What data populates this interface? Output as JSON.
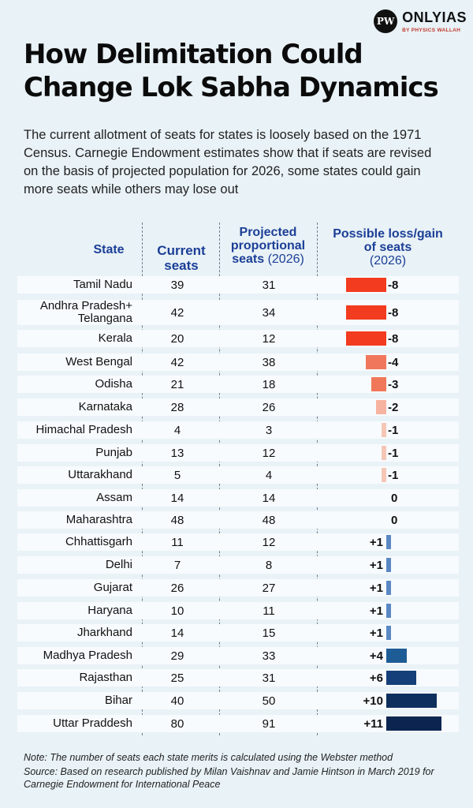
{
  "logo": {
    "mark": "PW",
    "name": "ONLYIAS",
    "sub": "BY PHYSICS WALLAH"
  },
  "title_line1": "How Delimitation Could",
  "title_line2": "Change Lok Sabha Dynamics",
  "subtitle": "The current allotment of seats for states is loosely based on the 1971 Census. Carnegie Endowment estimates show that if seats are revised on the basis of projected population for 2026, some states could gain more seats while others may lose out",
  "headers": {
    "state": "State",
    "current_1": "Current",
    "current_2": "seats",
    "proj_1": "Projected",
    "proj_2": "proportional",
    "proj_3": "seats",
    "proj_year": "(2026)",
    "change_1": "Possible loss/gain",
    "change_2": "of seats",
    "change_year": "(2026)"
  },
  "chart_data": {
    "type": "table",
    "columns": [
      "State",
      "Current seats",
      "Projected proportional seats (2026)",
      "Possible loss/gain of seats (2026)"
    ],
    "rows": [
      {
        "state": "Tamil Nadu",
        "current": "39",
        "projected": "31",
        "change": -8,
        "change_label": "-8"
      },
      {
        "state": "Andhra Pradesh+ Telangana",
        "current": "42",
        "projected": "34",
        "change": -8,
        "change_label": "-8"
      },
      {
        "state": "Kerala",
        "current": "20",
        "projected": "12",
        "change": -8,
        "change_label": "-8"
      },
      {
        "state": "West Bengal",
        "current": "42",
        "projected": "38",
        "change": -4,
        "change_label": "-4"
      },
      {
        "state": "Odisha",
        "current": "21",
        "projected": "18",
        "change": -3,
        "change_label": "-3"
      },
      {
        "state": "Karnataka",
        "current": "28",
        "projected": "26",
        "change": -2,
        "change_label": "-2"
      },
      {
        "state": "Himachal Pradesh",
        "current": "4",
        "projected": "3",
        "change": -1,
        "change_label": "-1"
      },
      {
        "state": "Punjab",
        "current": "13",
        "projected": "12",
        "change": -1,
        "change_label": "-1"
      },
      {
        "state": "Uttarakhand",
        "current": "5",
        "projected": "4",
        "change": -1,
        "change_label": "-1"
      },
      {
        "state": "Assam",
        "current": "14",
        "projected": "14",
        "change": 0,
        "change_label": "0"
      },
      {
        "state": "Maharashtra",
        "current": "48",
        "projected": "48",
        "change": 0,
        "change_label": "0"
      },
      {
        "state": "Chhattisgarh",
        "current": "11",
        "projected": "12",
        "change": 1,
        "change_label": "+1"
      },
      {
        "state": "Delhi",
        "current": "7",
        "projected": "8",
        "change": 1,
        "change_label": "+1"
      },
      {
        "state": "Gujarat",
        "current": "26",
        "projected": "27",
        "change": 1,
        "change_label": "+1"
      },
      {
        "state": "Haryana",
        "current": "10",
        "projected": "11",
        "change": 1,
        "change_label": "+1"
      },
      {
        "state": "Jharkhand",
        "current": "14",
        "projected": "15",
        "change": 1,
        "change_label": "+1"
      },
      {
        "state": "Madhya Pradesh",
        "current": "29",
        "projected": "33",
        "change": 4,
        "change_label": "+4"
      },
      {
        "state": "Rajasthan",
        "current": "25",
        "projected": "31",
        "change": 6,
        "change_label": "+6"
      },
      {
        "state": "Bihar",
        "current": "40",
        "projected": "50",
        "change": 10,
        "change_label": "+10"
      },
      {
        "state": "Uttar Praddesh",
        "current": "80",
        "projected": "91",
        "change": 11,
        "change_label": "+11"
      }
    ],
    "colors": {
      "loss_8": "#f23b1f",
      "loss_4": "#f1775c",
      "loss_3": "#f0775a",
      "loss_2": "#f6b3a0",
      "loss_1": "#f5c6b5",
      "gain_1": "#5b88c4",
      "gain_4": "#1e5c96",
      "gain_6": "#153f78",
      "gain_10": "#0f2f5e",
      "gain_11": "#0c2550"
    }
  },
  "notes": {
    "line1": "Note: The number of seats each state merits is calculated using the Webster method",
    "line2": "Source: Based on research published by Milan Vaishnav and Jamie Hintson in March 2019 for",
    "line3": "Carnegie Endowment for International Peace"
  }
}
